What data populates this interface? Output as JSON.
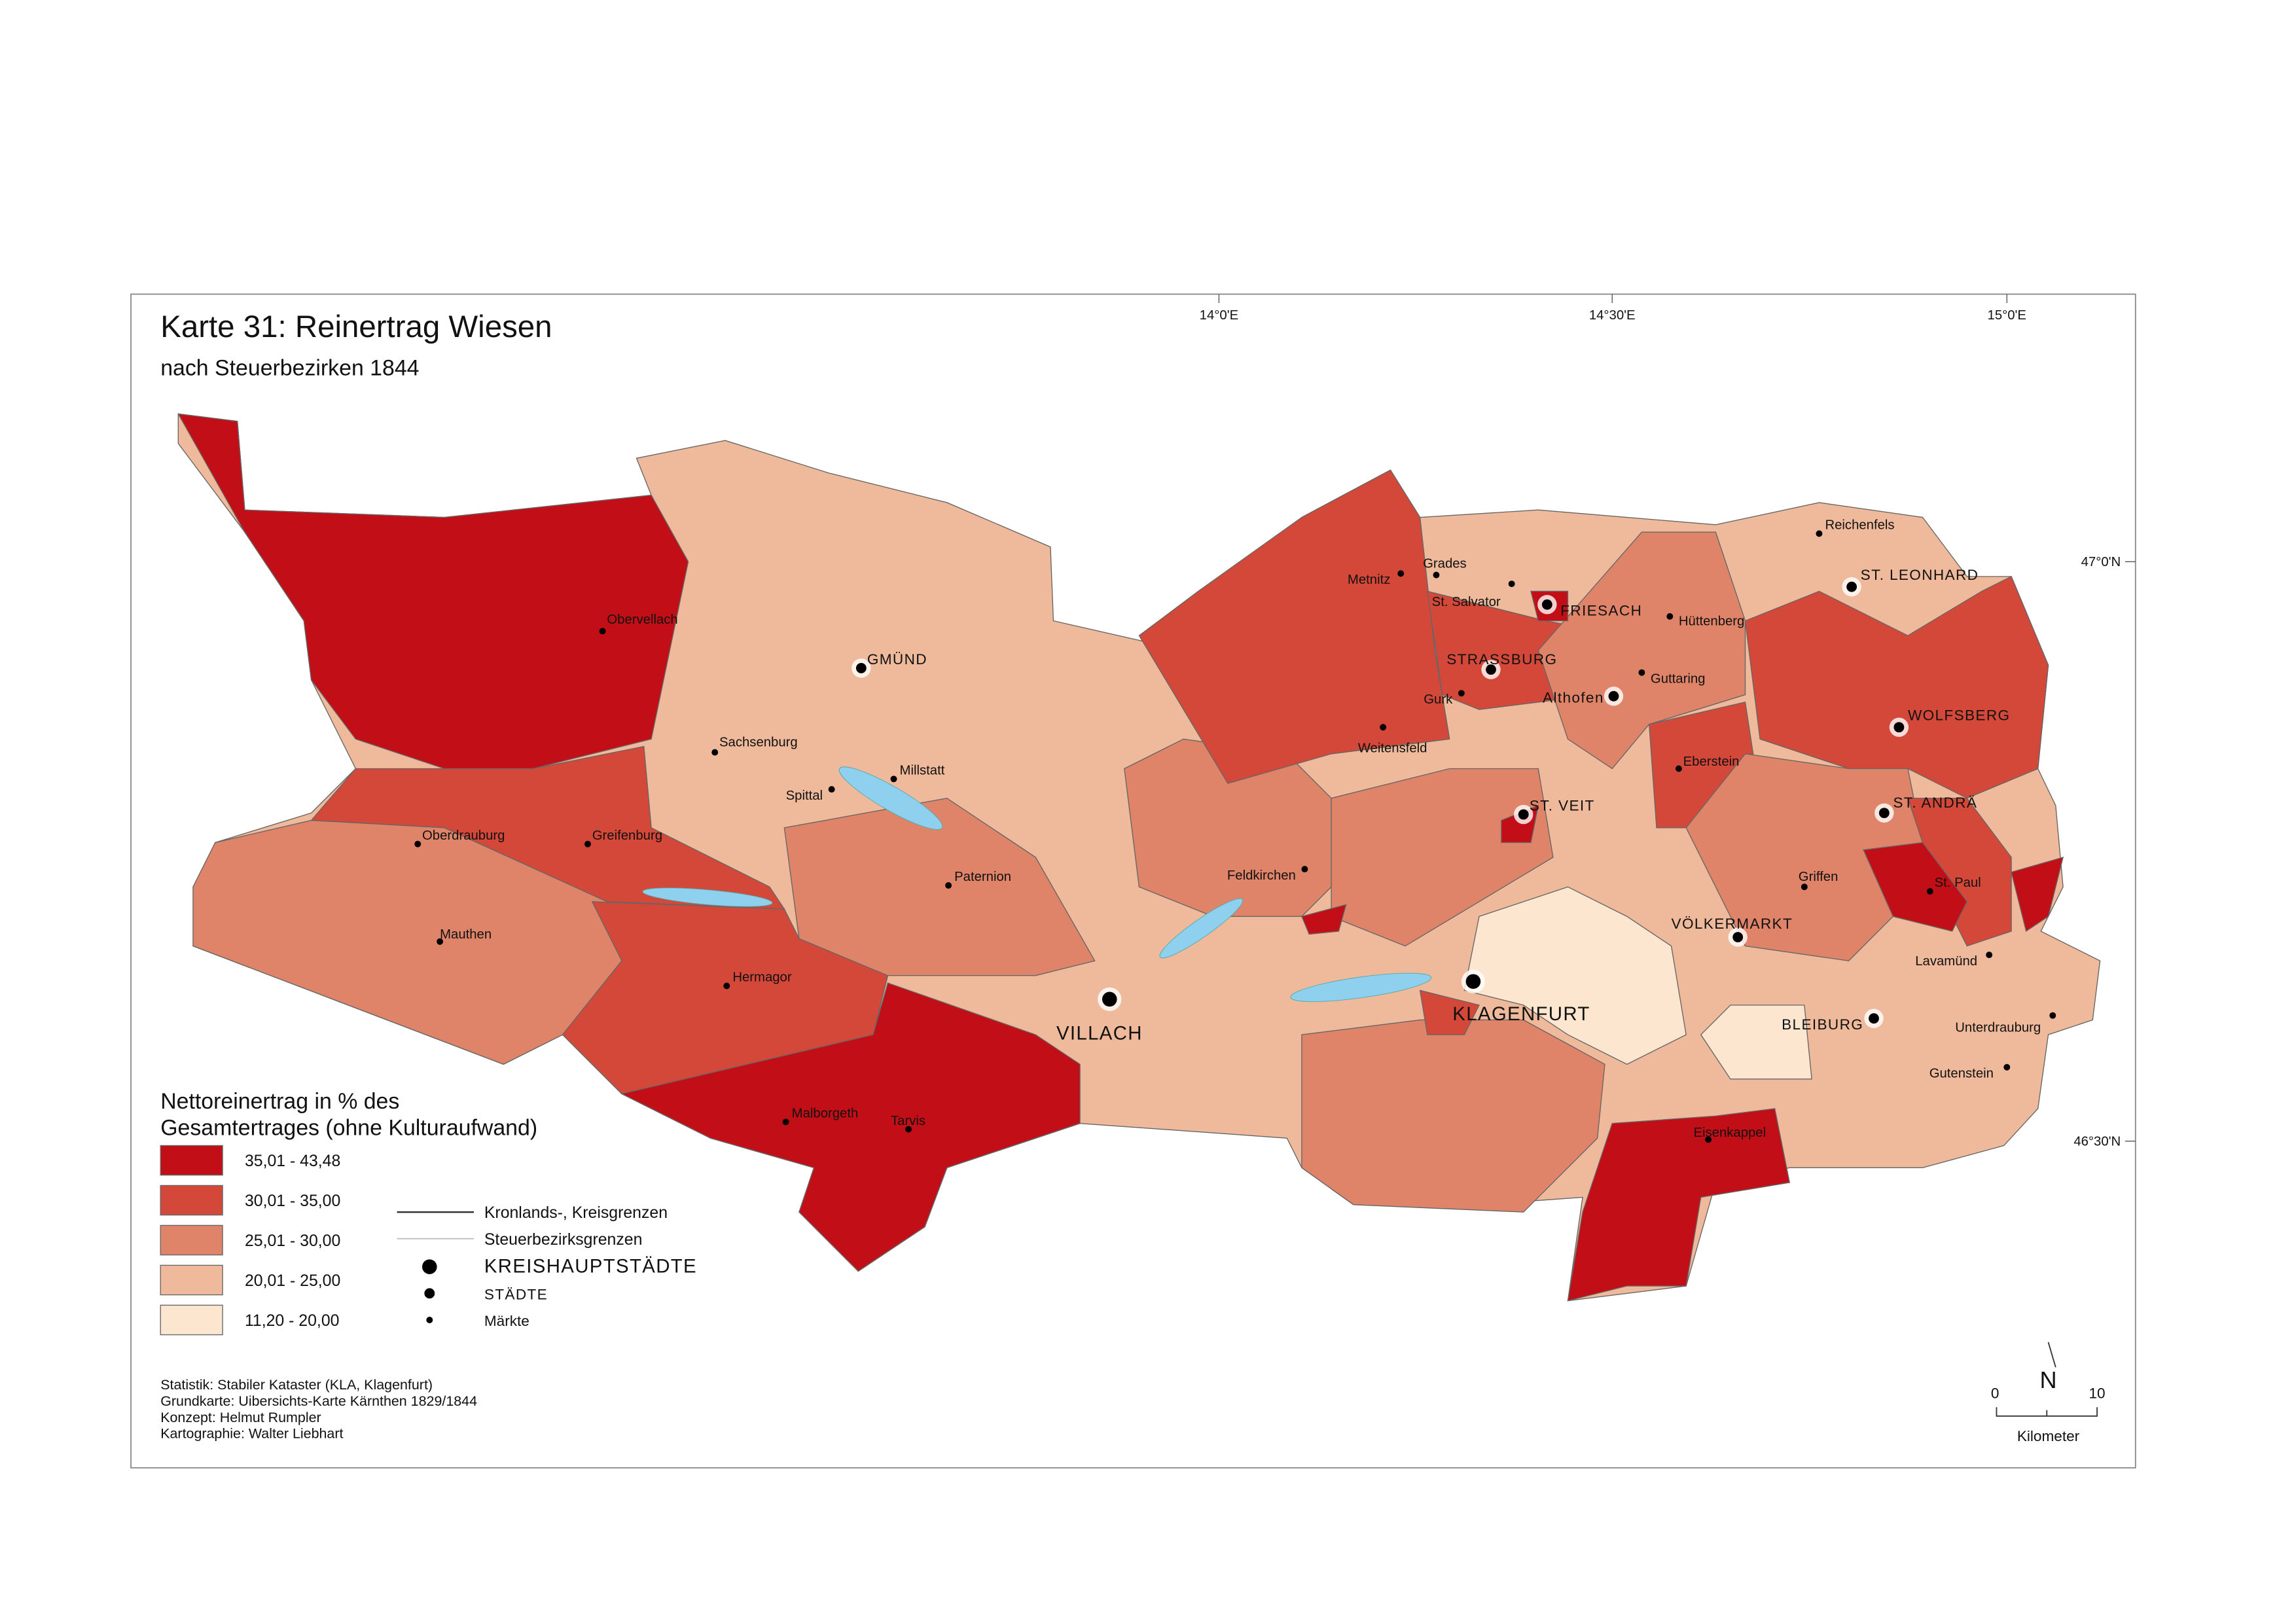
{
  "title": "Karte 31: Reinertrag Wiesen",
  "subtitle": "nach Steuerbezirken 1844",
  "graticule": {
    "top": [
      "14°0'E",
      "14°30'E",
      "15°0'E"
    ],
    "right": [
      "47°0'N",
      "46°30'N"
    ]
  },
  "legend": {
    "title": [
      "Nettoreinertrag in % des",
      "Gesamtertrages (ohne Kulturaufwand)"
    ],
    "classes": [
      {
        "label": "35,01 - 43,48",
        "color": "#c20f17"
      },
      {
        "label": "30,01 - 35,00",
        "color": "#d4483a"
      },
      {
        "label": "25,01 - 30,00",
        "color": "#e08469"
      },
      {
        "label": "20,01 - 25,00",
        "color": "#efba9b"
      },
      {
        "label": "11,20 - 20,00",
        "color": "#fde6d0"
      }
    ],
    "lines": [
      "Kronlands-, Kreisgrenzen",
      "Steuerbezirksgrenzen"
    ],
    "symbols": [
      "KREISHAUPTSTÄDTE",
      "STÄDTE",
      "Märkte"
    ]
  },
  "places": [
    "Obervellach",
    "GMÜND",
    "Sachsenburg",
    "Millstatt",
    "Spittal",
    "Oberdrauburg",
    "Greifenburg",
    "Paternion",
    "Mauthen",
    "Hermagor",
    "VILLACH",
    "Malborgeth",
    "Tarvis",
    "Metnitz",
    "Grades",
    "St. Salvator",
    "FRIESACH",
    "Hüttenberg",
    "STRASSBURG",
    "Gurk",
    "Guttaring",
    "Althofen",
    "Weitensfeld",
    "Eberstein",
    "ST. VEIT",
    "Feldkirchen",
    "VÖLKERMARKT",
    "KLAGENFURT",
    "BLEIBURG",
    "Reichenfels",
    "ST. LEONHARD",
    "WOLFSBERG",
    "ST. ANDRÄ",
    "Griffen",
    "St. Paul",
    "Lavamünd",
    "Unterdrauburg",
    "Gutenstein",
    "Eisenkappel"
  ],
  "credits": [
    "Statistik: Stabiler Kataster (KLA, Klagenfurt)",
    "Grundkarte: Uibersichts-Karte Kärnthen 1829/1844",
    "Konzept: Helmut Rumpler",
    "Kartographie: Walter Liebhart"
  ],
  "scale": {
    "ticks": [
      0,
      10
    ],
    "unit": "Kilometer",
    "north": "N"
  }
}
